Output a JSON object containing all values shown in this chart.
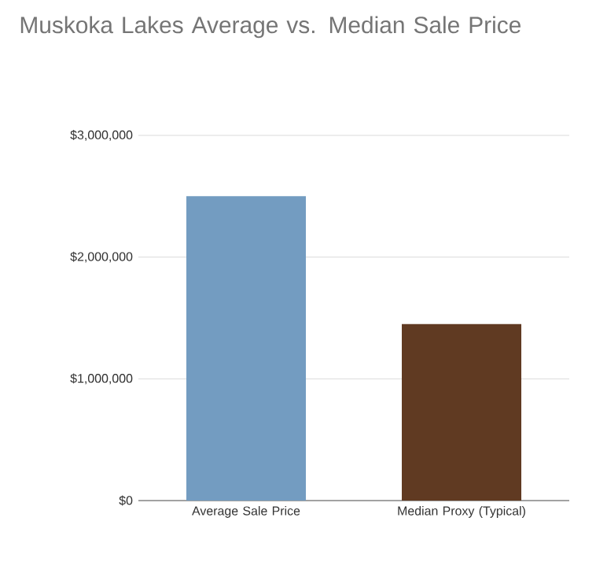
{
  "chart_data": {
    "type": "bar",
    "title": "Muskoka Lakes Average vs. Median Sale Price",
    "categories": [
      "Average Sale Price",
      "Median Proxy (Typical)"
    ],
    "values": [
      2500000,
      1450000
    ],
    "colors": [
      "#739cc1",
      "#603a22"
    ],
    "ylim": [
      0,
      3000000
    ],
    "yticks": [
      {
        "value": 0,
        "label": "$0"
      },
      {
        "value": 1000000,
        "label": "$1,000,000"
      },
      {
        "value": 2000000,
        "label": "$2,000,000"
      },
      {
        "value": 3000000,
        "label": "$3,000,000"
      }
    ],
    "grid": "y"
  }
}
